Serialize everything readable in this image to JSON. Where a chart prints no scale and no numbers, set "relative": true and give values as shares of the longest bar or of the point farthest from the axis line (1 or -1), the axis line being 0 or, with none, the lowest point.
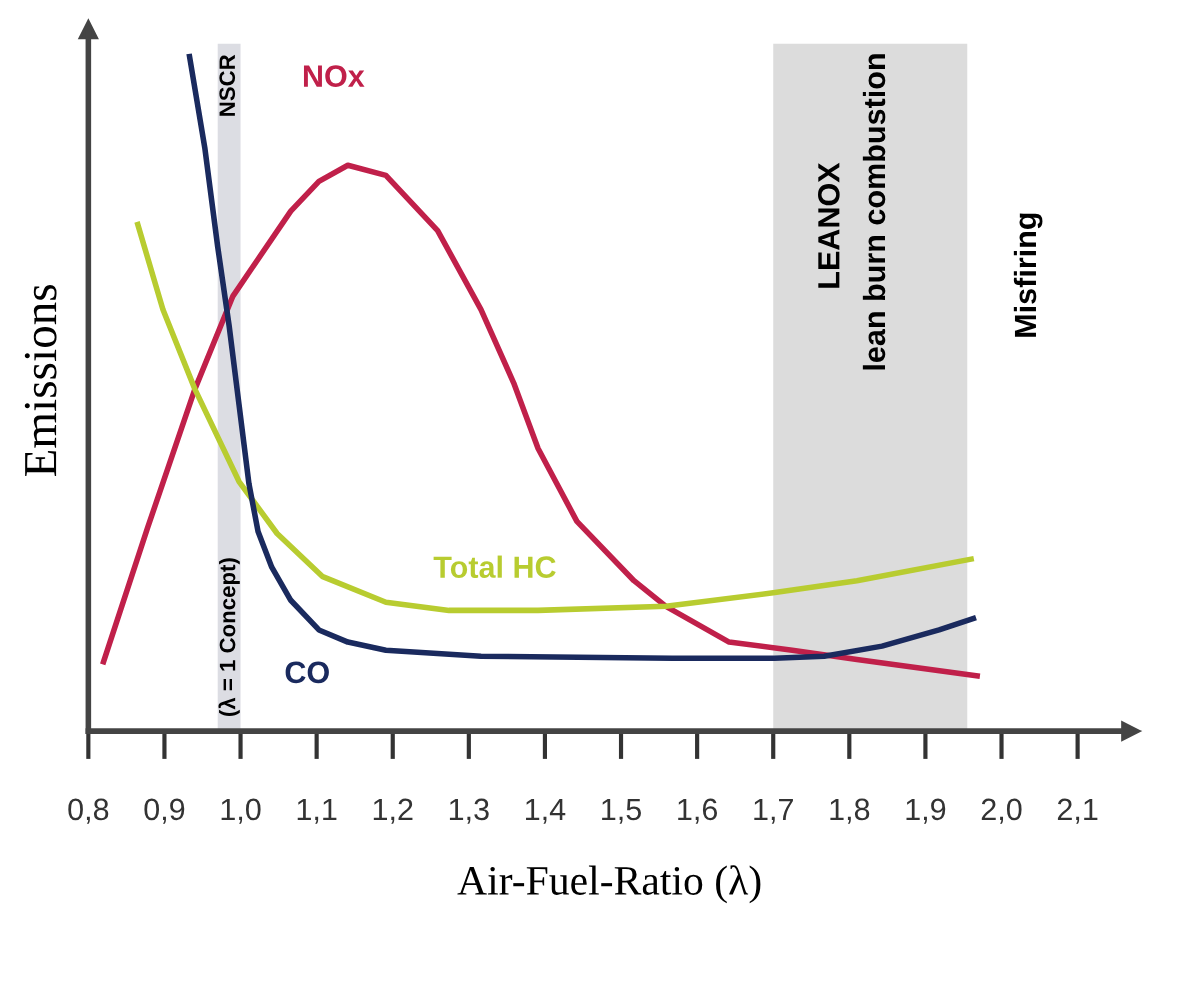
{
  "chart_data": {
    "type": "line",
    "relative": true,
    "xlabel": "Air-Fuel-Ratio (λ)",
    "ylabel": "Emissions",
    "xlim": [
      0.8,
      2.17
    ],
    "xticks": [
      {
        "value": 0.8,
        "label": "0,8"
      },
      {
        "value": 0.9,
        "label": "0,9"
      },
      {
        "value": 1.0,
        "label": "1,0"
      },
      {
        "value": 1.1,
        "label": "1,1"
      },
      {
        "value": 1.2,
        "label": "1,2"
      },
      {
        "value": 1.3,
        "label": "1,3"
      },
      {
        "value": 1.4,
        "label": "1,4"
      },
      {
        "value": 1.5,
        "label": "1,5"
      },
      {
        "value": 1.6,
        "label": "1,6"
      },
      {
        "value": 1.7,
        "label": "1,7"
      },
      {
        "value": 1.8,
        "label": "1,8"
      },
      {
        "value": 1.9,
        "label": "1,9"
      },
      {
        "value": 2.0,
        "label": "2,0"
      },
      {
        "value": 2.1,
        "label": "2,1"
      }
    ],
    "series": [
      {
        "name": "NOx",
        "color": "#c0204a",
        "x": [
          0.82,
          0.878,
          0.94,
          0.99,
          1.066,
          1.103,
          1.141,
          1.191,
          1.259,
          1.316,
          1.359,
          1.391,
          1.442,
          1.517,
          1.559,
          1.642,
          1.725,
          1.81,
          1.968
        ],
        "values": [
          0.103,
          0.302,
          0.507,
          0.645,
          0.771,
          0.815,
          0.839,
          0.824,
          0.742,
          0.625,
          0.516,
          0.419,
          0.311,
          0.223,
          0.185,
          0.132,
          0.12,
          0.106,
          0.082
        ]
      },
      {
        "name": "Total HC",
        "color": "#b8cc30",
        "x": [
          0.865,
          0.898,
          0.94,
          0.998,
          1.048,
          1.108,
          1.191,
          1.274,
          1.391,
          1.559,
          1.7,
          1.81,
          1.96
        ],
        "values": [
          0.751,
          0.625,
          0.507,
          0.37,
          0.293,
          0.229,
          0.191,
          0.179,
          0.179,
          0.185,
          0.205,
          0.223,
          0.255
        ]
      },
      {
        "name": "CO",
        "color": "#1a2a5e",
        "x": [
          0.933,
          0.953,
          0.97,
          0.985,
          0.998,
          1.011,
          1.023,
          1.041,
          1.066,
          1.103,
          1.141,
          1.191,
          1.316,
          1.567,
          1.702,
          1.767,
          1.843,
          1.918,
          1.963
        ],
        "values": [
          1.0,
          0.865,
          0.718,
          0.601,
          0.484,
          0.367,
          0.296,
          0.243,
          0.194,
          0.15,
          0.132,
          0.12,
          0.111,
          0.108,
          0.108,
          0.111,
          0.126,
          0.15,
          0.167
        ]
      }
    ],
    "bands": [
      {
        "axis": "x",
        "from": 0.97,
        "to": 1.0,
        "label": "NSCR",
        "color": "#dcdde3"
      },
      {
        "axis": "x",
        "from": 1.7,
        "to": 1.955,
        "label": "LEANOX",
        "color": "#dcdcdc"
      }
    ],
    "annotations": [
      "(λ = 1 Concept)",
      "lean burn combustion",
      "Misfiring"
    ],
    "grid": false,
    "legend": false,
    "marker": "none",
    "line_style": "solid"
  }
}
